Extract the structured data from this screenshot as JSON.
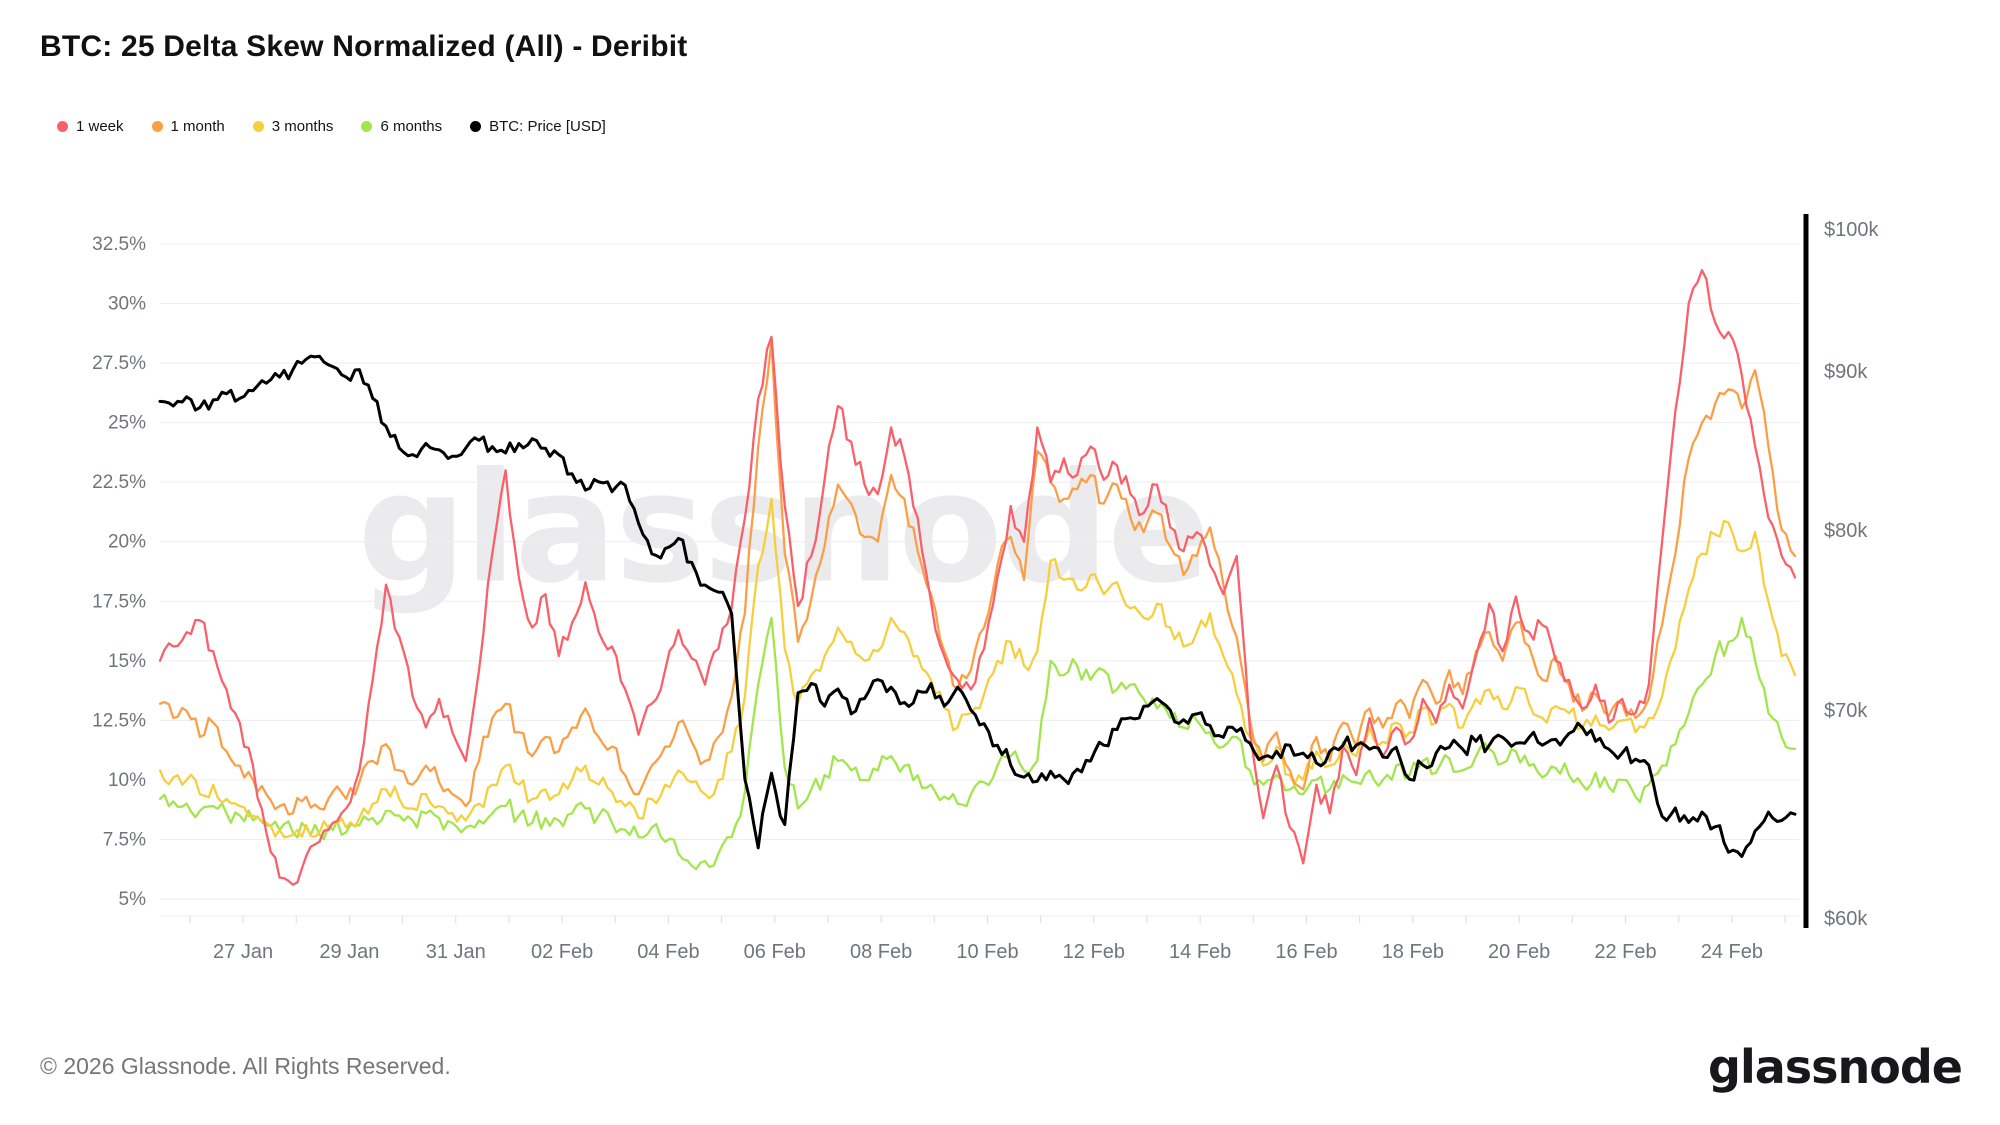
{
  "title": "BTC: 25 Delta Skew Normalized (All) - Deribit",
  "watermark": "glassnode",
  "footer": {
    "copyright": "© 2026 Glassnode. All Rights Reserved.",
    "logo": "glassnode"
  },
  "legend": {
    "items": [
      {
        "label": "1 week",
        "color": "#f9606a"
      },
      {
        "label": "1 month",
        "color": "#fb9f47"
      },
      {
        "label": "3 months",
        "color": "#f6cf3f"
      },
      {
        "label": "6 months",
        "color": "#a3e54d"
      },
      {
        "label": "BTC: Price [USD]",
        "color": "#000000"
      }
    ]
  },
  "chart_data": {
    "type": "line",
    "title": "BTC: 25 Delta Skew Normalized (All) - Deribit",
    "x_range": [
      "25 Jan 12:00",
      "25 Feb 06:00"
    ],
    "sample_interval_hours": 6,
    "x_tick_labels": [
      "27 Jan",
      "29 Jan",
      "31 Jan",
      "02 Feb",
      "04 Feb",
      "06 Feb",
      "08 Feb",
      "10 Feb",
      "12 Feb",
      "14 Feb",
      "16 Feb",
      "18 Feb",
      "20 Feb",
      "22 Feb",
      "24 Feb"
    ],
    "left_axis": {
      "unit": "%",
      "min": 5,
      "max": 32.5,
      "tick_step": 2.5,
      "tick_labels": [
        "32.5%",
        "30%",
        "27.5%",
        "25%",
        "22.5%",
        "20%",
        "17.5%",
        "15%",
        "12.5%",
        "10%",
        "7.5%",
        "5%"
      ],
      "scale": "linear",
      "grid": true
    },
    "right_axis": {
      "unit": "USD",
      "min": 60000,
      "max": 100000,
      "tick_labels": [
        "$100k",
        "$90k",
        "$80k",
        "$70k",
        "$60k"
      ],
      "tick_values_k": [
        100,
        90,
        80,
        70,
        60
      ],
      "scale": "log",
      "grid": false
    },
    "legend_position": "top-left",
    "series": [
      {
        "name": "1 week",
        "color": "#f9606a",
        "axis": "left",
        "values": [
          15.0,
          15.6,
          16.2,
          16.7,
          15.4,
          13.8,
          12.4,
          10.6,
          7.8,
          5.9,
          5.6,
          6.8,
          7.4,
          8.2,
          8.8,
          10.4,
          14.2,
          18.2,
          16.0,
          13.5,
          12.2,
          13.4,
          12.0,
          10.8,
          14.6,
          19.5,
          23.0,
          18.5,
          16.4,
          17.8,
          15.2,
          16.6,
          18.3,
          16.2,
          15.6,
          13.8,
          11.9,
          13.2,
          14.6,
          16.3,
          15.1,
          14.0,
          15.5,
          17.2,
          21.0,
          26.0,
          28.6,
          21.5,
          17.3,
          19.4,
          22.6,
          25.7,
          24.2,
          22.4,
          22.0,
          24.8,
          23.6,
          21.0,
          17.5,
          15.2,
          14.2,
          13.8,
          15.5,
          18.5,
          21.5,
          20.0,
          24.8,
          22.5,
          23.5,
          22.8,
          24.0,
          22.6,
          23.2,
          22.0,
          21.2,
          22.4,
          20.6,
          19.6,
          20.4,
          19.0,
          17.8,
          19.4,
          12.0,
          8.4,
          10.6,
          8.0,
          6.5,
          9.8,
          8.6,
          11.4,
          10.2,
          12.6,
          11.0,
          12.2,
          11.6,
          13.4,
          12.4,
          14.0,
          13.0,
          15.2,
          17.4,
          15.4,
          17.7,
          16.2,
          16.5,
          15.0,
          14.2,
          13.0,
          14.0,
          12.4,
          13.4,
          12.8,
          14.0,
          20.0,
          25.5,
          30.0,
          31.4,
          29.2,
          28.8,
          27.0,
          24.0,
          21.0,
          19.4,
          18.5
        ]
      },
      {
        "name": "1 month",
        "color": "#fb9f47",
        "axis": "left",
        "values": [
          13.2,
          12.6,
          12.9,
          11.8,
          12.4,
          11.2,
          10.6,
          10.0,
          9.4,
          8.9,
          8.6,
          9.3,
          8.8,
          9.5,
          9.2,
          9.9,
          10.8,
          11.5,
          10.4,
          9.8,
          10.6,
          9.9,
          9.4,
          8.9,
          10.8,
          12.6,
          13.2,
          12.0,
          11.0,
          11.8,
          11.2,
          12.2,
          13.0,
          11.8,
          11.4,
          10.2,
          9.4,
          10.6,
          11.4,
          12.4,
          11.6,
          10.8,
          11.8,
          13.5,
          17.0,
          24.0,
          28.4,
          19.5,
          15.8,
          17.6,
          19.8,
          22.4,
          21.6,
          20.2,
          20.0,
          22.8,
          21.8,
          19.6,
          17.8,
          15.4,
          13.8,
          14.6,
          16.4,
          19.0,
          20.2,
          18.4,
          23.8,
          22.5,
          21.8,
          22.2,
          22.8,
          21.6,
          22.4,
          21.0,
          20.4,
          21.2,
          19.8,
          18.6,
          19.4,
          20.6,
          18.2,
          16.0,
          12.5,
          10.8,
          12.0,
          10.4,
          9.6,
          11.8,
          10.8,
          12.4,
          11.4,
          13.0,
          12.2,
          13.2,
          12.6,
          14.2,
          13.2,
          14.6,
          13.6,
          15.4,
          16.2,
          15.0,
          16.6,
          15.6,
          14.2,
          15.2,
          14.0,
          12.9,
          13.6,
          12.7,
          13.2,
          12.6,
          13.4,
          16.5,
          19.5,
          23.5,
          25.0,
          25.8,
          26.4,
          25.6,
          27.2,
          24.0,
          20.5,
          19.4
        ]
      },
      {
        "name": "3 months",
        "color": "#f6cf3f",
        "axis": "left",
        "values": [
          10.4,
          10.1,
          10.0,
          9.4,
          9.8,
          9.2,
          8.9,
          8.5,
          8.2,
          7.9,
          7.7,
          8.1,
          7.8,
          8.2,
          8.0,
          8.4,
          9.0,
          9.6,
          9.2,
          8.8,
          9.4,
          8.9,
          8.6,
          8.3,
          9.0,
          9.8,
          10.6,
          9.8,
          9.2,
          9.6,
          9.4,
          10.0,
          10.6,
          9.8,
          9.5,
          8.9,
          8.4,
          9.2,
          9.8,
          10.4,
          9.9,
          9.4,
          10.0,
          11.2,
          13.5,
          19.0,
          21.8,
          15.5,
          13.2,
          14.4,
          15.2,
          16.4,
          15.8,
          15.0,
          15.4,
          16.8,
          16.2,
          15.2,
          14.2,
          13.0,
          12.2,
          12.8,
          13.6,
          15.0,
          15.8,
          14.8,
          15.4,
          19.2,
          18.4,
          18.0,
          18.6,
          17.8,
          18.3,
          17.2,
          16.8,
          17.4,
          16.4,
          15.6,
          16.2,
          17.0,
          15.2,
          13.6,
          11.8,
          10.6,
          11.4,
          10.2,
          10.0,
          11.2,
          10.6,
          11.6,
          11.0,
          12.2,
          11.6,
          12.4,
          12.0,
          13.0,
          12.4,
          13.2,
          12.2,
          13.4,
          13.8,
          13.0,
          13.9,
          13.2,
          12.6,
          13.1,
          12.8,
          12.2,
          12.7,
          12.1,
          12.5,
          12.0,
          12.6,
          13.5,
          15.5,
          18.0,
          19.5,
          20.3,
          20.8,
          19.6,
          20.4,
          17.5,
          15.2,
          14.4
        ]
      },
      {
        "name": "6 months",
        "color": "#a3e54d",
        "axis": "left",
        "values": [
          9.2,
          9.1,
          9.0,
          8.7,
          8.9,
          8.6,
          8.5,
          8.3,
          8.1,
          7.9,
          7.8,
          8.0,
          7.7,
          7.9,
          7.8,
          8.1,
          8.4,
          8.7,
          8.5,
          8.3,
          8.6,
          8.4,
          8.2,
          8.0,
          8.3,
          8.6,
          8.9,
          8.5,
          8.2,
          8.4,
          8.3,
          8.6,
          8.8,
          8.5,
          8.2,
          7.9,
          7.6,
          8.0,
          7.4,
          6.9,
          6.4,
          6.6,
          6.9,
          7.6,
          9.5,
          14.0,
          16.8,
          10.5,
          8.8,
          9.6,
          10.2,
          10.8,
          10.4,
          10.0,
          10.4,
          11.0,
          10.6,
          10.2,
          9.8,
          9.3,
          9.0,
          9.4,
          9.9,
          10.6,
          11.0,
          10.4,
          10.8,
          15.0,
          14.4,
          14.8,
          14.2,
          14.6,
          13.8,
          14.0,
          13.4,
          13.0,
          12.6,
          12.2,
          12.5,
          12.0,
          11.4,
          11.8,
          10.4,
          9.8,
          10.2,
          9.6,
          9.4,
          10.0,
          9.6,
          10.2,
          9.9,
          10.4,
          10.0,
          10.6,
          10.2,
          10.8,
          10.3,
          10.9,
          10.4,
          11.0,
          11.3,
          10.7,
          11.2,
          10.6,
          10.1,
          10.5,
          10.2,
          9.8,
          10.3,
          9.7,
          10.0,
          9.3,
          9.8,
          10.6,
          11.5,
          12.8,
          14.0,
          15.2,
          15.8,
          16.8,
          15.0,
          12.8,
          11.8,
          11.3
        ]
      },
      {
        "name": "BTC: Price [USD]",
        "color": "#000000",
        "axis": "right",
        "unit": "USD thousands",
        "values": [
          88.0,
          87.7,
          88.3,
          87.6,
          88.1,
          88.5,
          88.2,
          88.7,
          89.2,
          89.6,
          90.1,
          90.8,
          91.0,
          90.3,
          89.6,
          90.1,
          88.2,
          86.4,
          85.0,
          84.6,
          85.3,
          84.9,
          84.5,
          85.0,
          85.5,
          85.1,
          84.7,
          85.3,
          85.6,
          85.0,
          84.6,
          83.4,
          82.4,
          82.9,
          82.3,
          82.7,
          80.4,
          78.6,
          78.9,
          79.5,
          78.1,
          76.8,
          76.4,
          75.2,
          66.5,
          63.2,
          66.8,
          64.3,
          70.9,
          71.4,
          70.2,
          71.1,
          69.8,
          70.6,
          71.6,
          71.2,
          70.4,
          71.0,
          71.4,
          70.2,
          71.2,
          70.0,
          69.3,
          68.2,
          67.2,
          66.6,
          66.4,
          66.9,
          66.5,
          67.0,
          67.4,
          68.2,
          69.0,
          69.6,
          70.2,
          70.6,
          70.0,
          69.5,
          69.8,
          69.2,
          68.6,
          68.9,
          68.3,
          67.6,
          67.9,
          68.2,
          67.8,
          67.3,
          67.9,
          68.2,
          68.2,
          68.0,
          67.6,
          68.1,
          66.5,
          67.2,
          67.8,
          68.1,
          68.0,
          68.4,
          68.2,
          68.6,
          68.3,
          68.6,
          68.2,
          68.5,
          68.8,
          69.1,
          68.4,
          68.0,
          67.8,
          67.5,
          67.2,
          64.7,
          65.1,
          64.4,
          64.9,
          64.2,
          63.0,
          62.8,
          64.0,
          64.9,
          64.5,
          64.8
        ]
      }
    ],
    "style": {
      "grid_color": "#ededf1",
      "axis_text_color": "#70757c",
      "price_axis_bar_color": "#000000"
    }
  }
}
